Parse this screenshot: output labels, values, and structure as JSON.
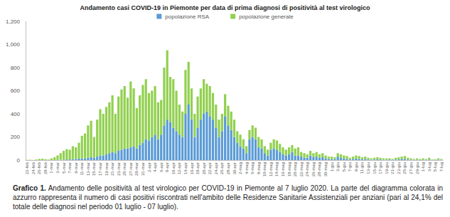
{
  "chart_data": {
    "type": "bar",
    "title": "Andamento casi COVID-19 in Piemonte per data di prima diagnosi di positività al test virologico",
    "caption": {
      "label": "Grafico 1.",
      "text": "Andamento delle positività al test virologico per COVID-19 in Piemonte al 7 luglio 2020. La parte del diagramma colorata in azzurro rappresenta il numero di casi positivi riscontrati nell'ambito delle Residenze Sanitarie Assistenziali per anziani (pari al 24,1% del totale delle diagnosi nel periodo 01 luglio - 07 luglio)."
    },
    "categories": [
      "22-feb",
      null,
      "24-feb",
      null,
      "26-feb",
      null,
      "28-feb",
      null,
      "1-mar",
      null,
      "3-mar",
      null,
      "5-mar",
      null,
      "7-mar",
      null,
      "9-mar",
      null,
      "11-mar",
      null,
      "13-mar",
      null,
      "15-mar",
      null,
      "17-mar",
      null,
      "19-mar",
      null,
      "21-mar",
      null,
      "23-mar",
      null,
      "25-mar",
      null,
      "27-mar",
      null,
      "29-mar",
      null,
      "31-mar",
      null,
      "2-apr",
      null,
      "4-apr",
      null,
      "6-apr",
      null,
      "8-apr",
      null,
      "10-apr",
      null,
      "12-apr",
      null,
      "14-apr",
      null,
      "16-apr",
      null,
      "18-apr",
      null,
      "20-apr",
      null,
      "22-apr",
      null,
      "24-apr",
      null,
      "26-apr",
      null,
      "28-apr",
      null,
      "30-apr",
      null,
      "2-mag",
      null,
      "4-mag",
      null,
      "6-mag",
      null,
      "8-mag",
      null,
      "10-mag",
      null,
      "12-mag",
      null,
      "14-mag",
      null,
      "16-mag",
      null,
      "18-mag",
      null,
      "20-mag",
      null,
      "22-mag",
      null,
      "24-mag",
      null,
      "26-mag",
      null,
      "28-mag",
      null,
      "30-mag",
      null,
      "1-giu",
      null,
      "3-giu",
      null,
      "5-giu",
      null,
      "7-giu",
      null,
      "9-giu",
      null,
      "11-giu",
      null,
      "13-giu",
      null,
      "15-giu",
      null,
      "17-giu",
      null,
      "19-giu",
      null,
      "21-giu",
      null,
      "23-giu",
      null,
      "25-giu",
      null,
      "27-giu",
      null,
      "29-giu",
      null,
      "1-lug",
      null,
      "3-lug",
      null,
      "5-lug",
      null,
      "7-lug"
    ],
    "series": [
      {
        "name": "popolazione RSA",
        "color": "#5b9bd5",
        "values": [
          0,
          0,
          0,
          0,
          0,
          0,
          0,
          0,
          0,
          0,
          1,
          2,
          3,
          5,
          5,
          8,
          10,
          12,
          15,
          15,
          20,
          25,
          20,
          30,
          40,
          40,
          50,
          60,
          70,
          60,
          80,
          90,
          100,
          100,
          110,
          120,
          100,
          130,
          150,
          180,
          170,
          200,
          220,
          180,
          220,
          300,
          350,
          330,
          280,
          250,
          220,
          200,
          400,
          480,
          350,
          200,
          280,
          350,
          400,
          420,
          380,
          350,
          280,
          200,
          250,
          380,
          300,
          260,
          200,
          150,
          120,
          100,
          60,
          180,
          200,
          180,
          110,
          100,
          60,
          40,
          90,
          100,
          90,
          70,
          50,
          40,
          50,
          70,
          40,
          40,
          30,
          20,
          20,
          40,
          25,
          30,
          20,
          25,
          15,
          10,
          10,
          8,
          30,
          20,
          15,
          10,
          5,
          10,
          15,
          10,
          8,
          10,
          5,
          3,
          5,
          8,
          5,
          3,
          3,
          5,
          2,
          5,
          8,
          10,
          10,
          5,
          3,
          2,
          3,
          2,
          3,
          2,
          5,
          1,
          2,
          4,
          3
        ]
      },
      {
        "name": "popolazione generale",
        "color": "#92d050",
        "values": [
          2,
          3,
          1,
          5,
          10,
          12,
          8,
          5,
          15,
          25,
          39,
          58,
          77,
          90,
          85,
          112,
          100,
          138,
          195,
          215,
          280,
          315,
          180,
          320,
          400,
          360,
          410,
          440,
          490,
          340,
          470,
          520,
          540,
          440,
          570,
          500,
          350,
          430,
          500,
          520,
          410,
          400,
          420,
          320,
          300,
          500,
          600,
          390,
          420,
          350,
          260,
          220,
          380,
          370,
          270,
          200,
          270,
          270,
          300,
          240,
          260,
          230,
          200,
          150,
          150,
          190,
          170,
          160,
          150,
          100,
          100,
          80,
          60,
          80,
          100,
          100,
          90,
          80,
          60,
          50,
          60,
          80,
          80,
          70,
          60,
          50,
          60,
          60,
          60,
          70,
          40,
          40,
          30,
          40,
          35,
          40,
          30,
          35,
          25,
          20,
          20,
          17,
          30,
          30,
          25,
          25,
          15,
          20,
          25,
          25,
          17,
          20,
          15,
          12,
          15,
          17,
          15,
          12,
          12,
          10,
          8,
          15,
          17,
          20,
          25,
          15,
          12,
          8,
          12,
          8,
          12,
          8,
          15,
          4,
          6,
          11,
          7
        ]
      }
    ],
    "stacked": true,
    "ylim": [
      0,
      1200
    ],
    "yticks": [
      0,
      200,
      400,
      600,
      800,
      1000,
      1200
    ],
    "grid": false,
    "legend": "top",
    "data_labels": false
  }
}
